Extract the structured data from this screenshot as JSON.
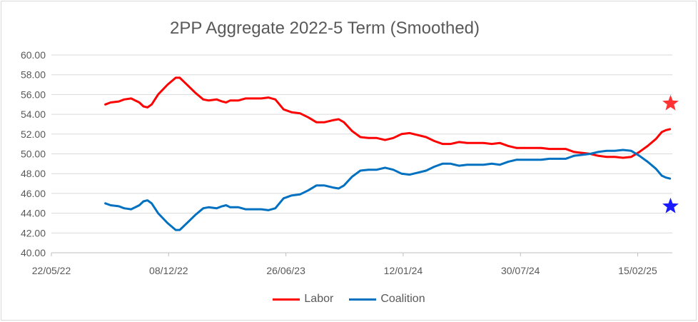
{
  "chart_data": {
    "type": "line",
    "title": "2PP Aggregate 2022-5 Term (Smoothed)",
    "xlabel": "",
    "ylabel": "",
    "x_range": [
      "2022-05-22",
      "2025-04-15"
    ],
    "ylim": [
      40,
      60
    ],
    "y_ticks": [
      "40.00",
      "42.00",
      "44.00",
      "46.00",
      "48.00",
      "50.00",
      "52.00",
      "54.00",
      "56.00",
      "58.00",
      "60.00"
    ],
    "x_ticks": [
      {
        "label": "22/05/22",
        "date": "2022-05-22"
      },
      {
        "label": "08/12/22",
        "date": "2022-12-08"
      },
      {
        "label": "26/06/23",
        "date": "2023-06-26"
      },
      {
        "label": "12/01/24",
        "date": "2024-01-12"
      },
      {
        "label": "30/07/24",
        "date": "2024-07-30"
      },
      {
        "label": "15/02/25",
        "date": "2025-02-15"
      }
    ],
    "grid": "horizontal",
    "legend": "bottom",
    "series": [
      {
        "name": "Labor",
        "color": "#ff0000",
        "points": [
          [
            "2022-08-22",
            55.0
          ],
          [
            "2022-08-31",
            55.2
          ],
          [
            "2022-09-14",
            55.3
          ],
          [
            "2022-09-23",
            55.5
          ],
          [
            "2022-10-05",
            55.6
          ],
          [
            "2022-10-19",
            55.2
          ],
          [
            "2022-10-26",
            54.8
          ],
          [
            "2022-11-02",
            54.7
          ],
          [
            "2022-11-09",
            55.0
          ],
          [
            "2022-11-20",
            56.0
          ],
          [
            "2022-12-06",
            57.0
          ],
          [
            "2022-12-20",
            57.7
          ],
          [
            "2022-12-27",
            57.7
          ],
          [
            "2023-01-10",
            56.9
          ],
          [
            "2023-01-22",
            56.2
          ],
          [
            "2023-02-05",
            55.5
          ],
          [
            "2023-02-14",
            55.4
          ],
          [
            "2023-02-28",
            55.5
          ],
          [
            "2023-03-09",
            55.3
          ],
          [
            "2023-03-16",
            55.2
          ],
          [
            "2023-03-23",
            55.4
          ],
          [
            "2023-04-06",
            55.4
          ],
          [
            "2023-04-18",
            55.6
          ],
          [
            "2023-05-01",
            55.6
          ],
          [
            "2023-05-15",
            55.6
          ],
          [
            "2023-05-27",
            55.7
          ],
          [
            "2023-06-08",
            55.5
          ],
          [
            "2023-06-22",
            54.5
          ],
          [
            "2023-07-06",
            54.2
          ],
          [
            "2023-07-20",
            54.1
          ],
          [
            "2023-08-03",
            53.7
          ],
          [
            "2023-08-17",
            53.2
          ],
          [
            "2023-08-31",
            53.2
          ],
          [
            "2023-09-14",
            53.4
          ],
          [
            "2023-09-24",
            53.5
          ],
          [
            "2023-10-03",
            53.2
          ],
          [
            "2023-10-17",
            52.3
          ],
          [
            "2023-10-31",
            51.7
          ],
          [
            "2023-11-14",
            51.6
          ],
          [
            "2023-11-28",
            51.6
          ],
          [
            "2023-12-12",
            51.4
          ],
          [
            "2023-12-26",
            51.6
          ],
          [
            "2024-01-09",
            52.0
          ],
          [
            "2024-01-23",
            52.1
          ],
          [
            "2024-02-06",
            51.9
          ],
          [
            "2024-02-20",
            51.7
          ],
          [
            "2024-03-05",
            51.3
          ],
          [
            "2024-03-19",
            51.0
          ],
          [
            "2024-04-02",
            51.0
          ],
          [
            "2024-04-16",
            51.2
          ],
          [
            "2024-04-30",
            51.1
          ],
          [
            "2024-05-14",
            51.1
          ],
          [
            "2024-05-28",
            51.1
          ],
          [
            "2024-06-11",
            51.0
          ],
          [
            "2024-06-25",
            51.1
          ],
          [
            "2024-07-09",
            50.8
          ],
          [
            "2024-07-23",
            50.6
          ],
          [
            "2024-08-06",
            50.6
          ],
          [
            "2024-08-20",
            50.6
          ],
          [
            "2024-09-03",
            50.6
          ],
          [
            "2024-09-17",
            50.5
          ],
          [
            "2024-10-01",
            50.5
          ],
          [
            "2024-10-15",
            50.5
          ],
          [
            "2024-10-29",
            50.2
          ],
          [
            "2024-11-12",
            50.1
          ],
          [
            "2024-11-26",
            50.0
          ],
          [
            "2024-12-10",
            49.8
          ],
          [
            "2024-12-24",
            49.7
          ],
          [
            "2025-01-07",
            49.7
          ],
          [
            "2025-01-21",
            49.6
          ],
          [
            "2025-02-04",
            49.7
          ],
          [
            "2025-02-18",
            50.2
          ],
          [
            "2025-03-04",
            50.8
          ],
          [
            "2025-03-18",
            51.5
          ],
          [
            "2025-03-28",
            52.2
          ],
          [
            "2025-04-04",
            52.4
          ],
          [
            "2025-04-11",
            52.5
          ]
        ]
      },
      {
        "name": "Coalition",
        "color": "#0070c0",
        "points": [
          [
            "2022-08-22",
            45.0
          ],
          [
            "2022-08-31",
            44.8
          ],
          [
            "2022-09-14",
            44.7
          ],
          [
            "2022-09-23",
            44.5
          ],
          [
            "2022-10-05",
            44.4
          ],
          [
            "2022-10-19",
            44.8
          ],
          [
            "2022-10-26",
            45.2
          ],
          [
            "2022-11-02",
            45.3
          ],
          [
            "2022-11-09",
            45.0
          ],
          [
            "2022-11-20",
            44.0
          ],
          [
            "2022-12-06",
            43.0
          ],
          [
            "2022-12-20",
            42.3
          ],
          [
            "2022-12-27",
            42.3
          ],
          [
            "2023-01-10",
            43.1
          ],
          [
            "2023-01-22",
            43.8
          ],
          [
            "2023-02-05",
            44.5
          ],
          [
            "2023-02-14",
            44.6
          ],
          [
            "2023-02-28",
            44.5
          ],
          [
            "2023-03-09",
            44.7
          ],
          [
            "2023-03-16",
            44.8
          ],
          [
            "2023-03-23",
            44.6
          ],
          [
            "2023-04-06",
            44.6
          ],
          [
            "2023-04-18",
            44.4
          ],
          [
            "2023-05-01",
            44.4
          ],
          [
            "2023-05-15",
            44.4
          ],
          [
            "2023-05-27",
            44.3
          ],
          [
            "2023-06-08",
            44.5
          ],
          [
            "2023-06-22",
            45.5
          ],
          [
            "2023-07-06",
            45.8
          ],
          [
            "2023-07-20",
            45.9
          ],
          [
            "2023-08-03",
            46.3
          ],
          [
            "2023-08-17",
            46.8
          ],
          [
            "2023-08-31",
            46.8
          ],
          [
            "2023-09-14",
            46.6
          ],
          [
            "2023-09-24",
            46.5
          ],
          [
            "2023-10-03",
            46.8
          ],
          [
            "2023-10-17",
            47.7
          ],
          [
            "2023-10-31",
            48.3
          ],
          [
            "2023-11-14",
            48.4
          ],
          [
            "2023-11-28",
            48.4
          ],
          [
            "2023-12-12",
            48.6
          ],
          [
            "2023-12-26",
            48.4
          ],
          [
            "2024-01-09",
            48.0
          ],
          [
            "2024-01-23",
            47.9
          ],
          [
            "2024-02-06",
            48.1
          ],
          [
            "2024-02-20",
            48.3
          ],
          [
            "2024-03-05",
            48.7
          ],
          [
            "2024-03-19",
            49.0
          ],
          [
            "2024-04-02",
            49.0
          ],
          [
            "2024-04-16",
            48.8
          ],
          [
            "2024-04-30",
            48.9
          ],
          [
            "2024-05-14",
            48.9
          ],
          [
            "2024-05-28",
            48.9
          ],
          [
            "2024-06-11",
            49.0
          ],
          [
            "2024-06-25",
            48.9
          ],
          [
            "2024-07-09",
            49.2
          ],
          [
            "2024-07-23",
            49.4
          ],
          [
            "2024-08-06",
            49.4
          ],
          [
            "2024-08-20",
            49.4
          ],
          [
            "2024-09-03",
            49.4
          ],
          [
            "2024-09-17",
            49.5
          ],
          [
            "2024-10-01",
            49.5
          ],
          [
            "2024-10-15",
            49.5
          ],
          [
            "2024-10-29",
            49.8
          ],
          [
            "2024-11-12",
            49.9
          ],
          [
            "2024-11-26",
            50.0
          ],
          [
            "2024-12-10",
            50.2
          ],
          [
            "2024-12-24",
            50.3
          ],
          [
            "2025-01-07",
            50.3
          ],
          [
            "2025-01-21",
            50.4
          ],
          [
            "2025-02-04",
            50.3
          ],
          [
            "2025-02-18",
            49.8
          ],
          [
            "2025-03-04",
            49.2
          ],
          [
            "2025-03-18",
            48.5
          ],
          [
            "2025-03-28",
            47.8
          ],
          [
            "2025-04-04",
            47.6
          ],
          [
            "2025-04-11",
            47.5
          ]
        ]
      }
    ],
    "markers": [
      {
        "shape": "star",
        "color": "#ff3333",
        "date": "2025-04-12",
        "value": 55.1
      },
      {
        "shape": "star",
        "color": "#1a1aff",
        "date": "2025-04-12",
        "value": 44.7
      }
    ]
  }
}
